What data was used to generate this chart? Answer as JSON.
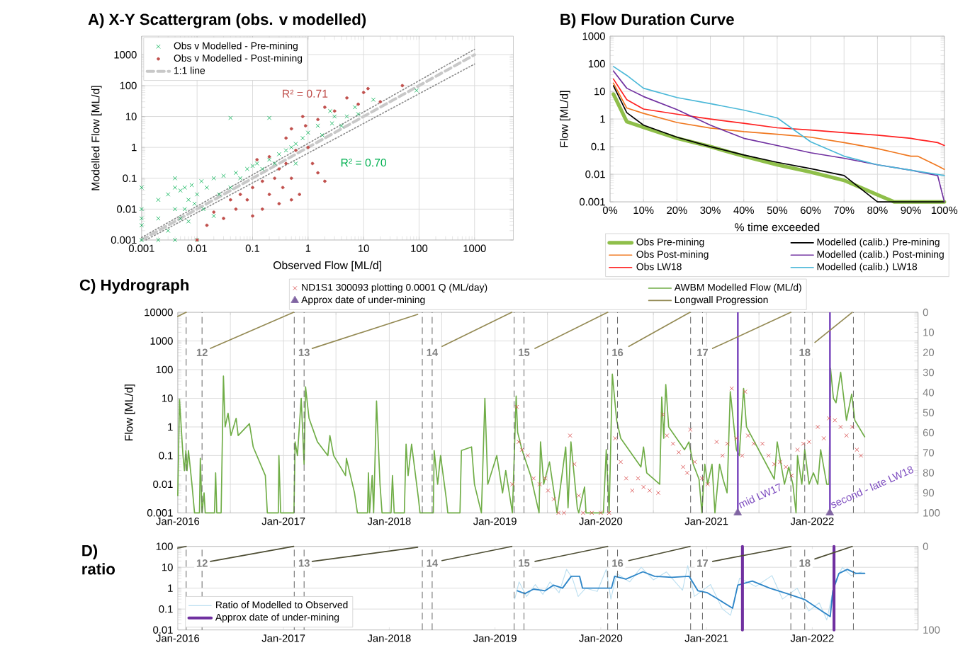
{
  "chart_data": [
    {
      "type": "scatter",
      "title": "A) X-Y Scattergram (obs. v modelled)",
      "xlabel": "Observed Flow [ML/d]",
      "ylabel": "Modelled Flow [ML/d]",
      "log": "xy",
      "xlim": [
        0.001,
        5000
      ],
      "ylim": [
        0.001,
        4000
      ],
      "xticks": [
        0.001,
        0.01,
        0.1,
        1,
        10,
        100,
        1000
      ],
      "yticks": [
        0.001,
        0.01,
        0.1,
        1,
        10,
        100,
        1000
      ],
      "grid": true,
      "legend": "top left",
      "annotations": [
        "R² = 0.71",
        "R² = 0.70"
      ],
      "series": [
        {
          "name": "Obs v Modelled - Pre-mining",
          "color": "#00b050",
          "marker": "cross",
          "x": [
            0.001,
            0.001,
            0.001,
            0.001,
            0.001,
            0.002,
            0.002,
            0.002,
            0.003,
            0.003,
            0.004,
            0.004,
            0.004,
            0.004,
            0.005,
            0.005,
            0.006,
            0.006,
            0.007,
            0.007,
            0.008,
            0.009,
            0.01,
            0.01,
            0.012,
            0.013,
            0.015,
            0.02,
            0.02,
            0.025,
            0.03,
            0.04,
            0.04,
            0.05,
            0.06,
            0.08,
            0.1,
            0.12,
            0.15,
            0.2,
            0.2,
            0.25,
            0.3,
            0.4,
            0.5,
            0.6,
            0.6,
            0.8,
            1,
            1.5,
            1.8,
            2.5,
            2.7,
            3,
            4,
            5,
            7,
            8,
            15,
            90
          ],
          "values": [
            0.001,
            0.005,
            0.01,
            0.05,
            0.003,
            0.001,
            0.02,
            0.005,
            0.002,
            0.03,
            0.001,
            0.1,
            0.01,
            0.05,
            0.04,
            0.005,
            0.01,
            0.05,
            0.02,
            0.004,
            0.06,
            0.015,
            0.03,
            0.001,
            0.08,
            0.01,
            0.05,
            0.1,
            0.006,
            0.03,
            0.12,
            9,
            0.05,
            0.15,
            0.1,
            0.2,
            0.25,
            0.3,
            0.2,
            9,
            0.4,
            0.3,
            0.6,
            0.8,
            1,
            0.3,
            1.3,
            2,
            3,
            5,
            2.5,
            15,
            6,
            10,
            5,
            10,
            20,
            12,
            35,
            70
          ]
        },
        {
          "name": "Obs v Modelled - Post-mining",
          "color": "#c0504d",
          "marker": "circle",
          "x": [
            0.01,
            0.015,
            0.02,
            0.03,
            0.04,
            0.05,
            0.06,
            0.08,
            0.1,
            0.1,
            0.12,
            0.15,
            0.15,
            0.2,
            0.2,
            0.25,
            0.3,
            0.3,
            0.35,
            0.4,
            0.4,
            0.5,
            0.5,
            0.5,
            0.6,
            0.7,
            0.8,
            0.9,
            1,
            1.2,
            1.5,
            1.5,
            2,
            2,
            3,
            5,
            8,
            10,
            12,
            20,
            50
          ],
          "values": [
            0.001,
            0.003,
            0.008,
            0.005,
            0.02,
            0.01,
            0.03,
            0.02,
            0.006,
            0.05,
            0.4,
            0.01,
            0.08,
            0.03,
            0.5,
            0.1,
            0.015,
            0.2,
            0.05,
            2,
            0.3,
            0.02,
            0.1,
            4,
            0.8,
            0.03,
            10,
            5,
            1,
            0.3,
            0.15,
            8,
            20,
            0.08,
            15,
            40,
            25,
            60,
            80,
            30,
            100
          ]
        },
        {
          "name": "1:1 line",
          "type": "line",
          "color": "#c8c8c8",
          "line_style": "dashed",
          "x": [
            0.001,
            1000
          ],
          "values": [
            0.001,
            1000
          ]
        },
        {
          "type": "line",
          "color": "#8c8c8c",
          "line_style": "dotted",
          "x": [
            0.001,
            1000
          ],
          "values": [
            0.0012,
            1500
          ]
        },
        {
          "type": "line",
          "color": "#8c8c8c",
          "line_style": "dotted",
          "x": [
            0.0012,
            1000
          ],
          "values": [
            0.001,
            500
          ]
        }
      ]
    },
    {
      "type": "line",
      "title": "B) Flow Duration Curve",
      "xlabel": "% time exceeded",
      "ylabel": "Flow [ML/d]",
      "log": "y",
      "xlim": [
        0,
        100
      ],
      "ylim": [
        0.001,
        1000
      ],
      "xticks": [
        {
          "value": 0,
          "label": "0%"
        },
        {
          "value": 10,
          "label": "10%"
        },
        {
          "value": 20,
          "label": "20%"
        },
        {
          "value": 30,
          "label": "30%"
        },
        {
          "value": 40,
          "label": "40%"
        },
        {
          "value": 50,
          "label": "50%"
        },
        {
          "value": 60,
          "label": "60%"
        },
        {
          "value": 70,
          "label": "70%"
        },
        {
          "value": 80,
          "label": "80%"
        },
        {
          "value": 90,
          "label": "90%"
        },
        {
          "value": 100,
          "label": "100%"
        }
      ],
      "yticks": [
        0.001,
        0.01,
        0.1,
        1,
        10,
        100,
        1000
      ],
      "grid": true,
      "legend": "bottom",
      "series": [
        {
          "name": "Obs Pre-mining",
          "color": "#8fbf4a",
          "x": [
            1,
            5,
            10,
            20,
            30,
            40,
            50,
            60,
            70,
            80,
            85,
            90,
            100
          ],
          "values": [
            8,
            0.8,
            0.5,
            0.2,
            0.1,
            0.045,
            0.022,
            0.012,
            0.006,
            0.0018,
            0.001,
            0.001,
            0.001
          ]
        },
        {
          "name": "Obs Post-mining",
          "color": "#f07820",
          "x": [
            1,
            5,
            10,
            20,
            30,
            40,
            50,
            60,
            70,
            80,
            90,
            92,
            95,
            98,
            100
          ],
          "values": [
            20,
            2.5,
            1.6,
            0.75,
            0.47,
            0.35,
            0.28,
            0.22,
            0.14,
            0.085,
            0.045,
            0.045,
            0.03,
            0.02,
            0.015
          ]
        },
        {
          "name": "Obs LW18",
          "color": "#ff2020",
          "x": [
            1,
            5,
            10,
            20,
            30,
            40,
            50,
            60,
            70,
            80,
            90,
            92,
            95,
            98,
            100
          ],
          "values": [
            28,
            5,
            2.3,
            1.5,
            1.0,
            0.7,
            0.48,
            0.4,
            0.32,
            0.26,
            0.2,
            0.18,
            0.16,
            0.14,
            0.11
          ]
        },
        {
          "name": "Modelled (calib.) Pre-mining",
          "color": "#000000",
          "x": [
            1,
            5,
            10,
            20,
            30,
            40,
            50,
            60,
            70,
            80,
            90,
            100
          ],
          "values": [
            16,
            1.7,
            0.6,
            0.22,
            0.1,
            0.05,
            0.027,
            0.016,
            0.009,
            0.001,
            0.001,
            0.001
          ]
        },
        {
          "name": "Modelled (calib.) Post-mining",
          "color": "#7030a0",
          "x": [
            1,
            5,
            10,
            20,
            30,
            40,
            50,
            60,
            70,
            80,
            90,
            98,
            100
          ],
          "values": [
            55,
            13,
            6.5,
            2.2,
            0.6,
            0.2,
            0.11,
            0.06,
            0.038,
            0.022,
            0.014,
            0.009,
            0.001
          ]
        },
        {
          "name": "Modelled (calib.) LW18",
          "color": "#4bb8d8",
          "x": [
            1,
            5,
            10,
            20,
            30,
            40,
            50,
            60,
            70,
            80,
            90,
            100
          ],
          "values": [
            80,
            38,
            13,
            6,
            3.6,
            2.1,
            1.1,
            0.15,
            0.045,
            0.022,
            0.014,
            0.009
          ]
        }
      ]
    },
    {
      "type": "line",
      "title": "C) Hydrograph",
      "ylabel": "Flow [ML/d]",
      "log": "y",
      "xlim": [
        "2016-01",
        "2023-01"
      ],
      "ylim": [
        0.001,
        10000
      ],
      "xticks": [
        {
          "value": "2016-01",
          "label": "Jan-2016"
        },
        {
          "value": "2016-07",
          "label": null
        },
        {
          "value": "2017-01",
          "label": "Jan-2017"
        },
        {
          "value": "2017-07",
          "label": null
        },
        {
          "value": "2018-01",
          "label": "Jan-2018"
        },
        {
          "value": "2018-07",
          "label": null
        },
        {
          "value": "2019-01",
          "label": "Jan-2019"
        },
        {
          "value": "2019-07",
          "label": null
        },
        {
          "value": "2020-01",
          "label": "Jan-2020"
        },
        {
          "value": "2020-07",
          "label": null
        },
        {
          "value": "2021-01",
          "label": "Jan-2021"
        },
        {
          "value": "2021-07",
          "label": null
        },
        {
          "value": "2022-01",
          "label": "Jan-2022"
        },
        {
          "value": "2022-07",
          "label": null
        }
      ],
      "yticks": [
        0.001,
        0.01,
        0.1,
        1,
        10,
        100,
        1000,
        10000
      ],
      "y2lim": [
        100,
        0
      ],
      "y2ticks": [
        0,
        10,
        20,
        30,
        40,
        50,
        60,
        70,
        80,
        90,
        100
      ],
      "grid": true,
      "legend": "top",
      "ref_lines": [
        {
          "axis": "x",
          "value": "2016-01-30",
          "color": "#595959",
          "line_style": "dashed"
        },
        {
          "axis": "x",
          "value": "2016-03-25",
          "label": "12",
          "color": "#595959",
          "line_style": "dashed"
        },
        {
          "axis": "x",
          "value": "2017-02-07",
          "color": "#595959",
          "line_style": "dashed"
        },
        {
          "axis": "x",
          "value": "2017-03-13",
          "label": "13",
          "color": "#595959",
          "line_style": "dashed"
        },
        {
          "axis": "x",
          "value": "2018-04-25",
          "color": "#595959",
          "line_style": "dashed"
        },
        {
          "axis": "x",
          "value": "2018-05-29",
          "label": "14",
          "color": "#595959",
          "line_style": "dashed"
        },
        {
          "axis": "x",
          "value": "2019-03-08",
          "color": "#595959",
          "line_style": "dashed"
        },
        {
          "axis": "x",
          "value": "2019-04-11",
          "label": "15",
          "color": "#595959",
          "line_style": "dashed"
        },
        {
          "axis": "x",
          "value": "2020-01-25",
          "color": "#595959",
          "line_style": "dashed"
        },
        {
          "axis": "x",
          "value": "2020-02-28",
          "label": "16",
          "color": "#595959",
          "line_style": "dashed"
        },
        {
          "axis": "x",
          "value": "2020-11-07",
          "color": "#595959",
          "line_style": "dashed"
        },
        {
          "axis": "x",
          "value": "2020-12-18",
          "label": "17",
          "color": "#595959",
          "line_style": "dashed"
        },
        {
          "axis": "x",
          "value": "2021-10-19",
          "color": "#595959",
          "line_style": "dashed"
        },
        {
          "axis": "x",
          "value": "2021-12-06",
          "label": "18",
          "color": "#595959",
          "line_style": "dashed"
        },
        {
          "axis": "x",
          "value": "2022-05-23",
          "color": "#595959",
          "line_style": "dashed"
        },
        {
          "axis": "x",
          "value": "2021-04-19",
          "label": "mid LW17",
          "color": "#7f4fc0",
          "line_style": "solid"
        },
        {
          "axis": "x",
          "value": "2022-03-03",
          "label": "second - late LW18",
          "color": "#7f4fc0",
          "line_style": "solid"
        }
      ],
      "series": [
        {
          "name": "ND1S1 300093 plotting 0.0001 Q (ML/day)",
          "type": "scatter",
          "marker": "cross",
          "color": "#d84848",
          "x": [
            "2019-03-02",
            "2019-03-17",
            "2019-03-24",
            "2019-04-04",
            "2019-04-24",
            "2019-05-14",
            "2019-06-04",
            "2019-06-23",
            "2019-07-03",
            "2019-07-23",
            "2019-08-08",
            "2019-08-27",
            "2019-09-17",
            "2019-10-02",
            "2019-10-17",
            "2019-11-01",
            "2019-12-01",
            "2020-01-01",
            "2020-01-30",
            "2020-02-20",
            "2020-03-10",
            "2020-03-29",
            "2020-04-19",
            "2020-05-09",
            "2020-05-28",
            "2020-06-18",
            "2020-07-18",
            "2020-08-03",
            "2020-08-17",
            "2020-09-07",
            "2020-09-27",
            "2020-10-12",
            "2020-10-26",
            "2020-11-06",
            "2020-11-21",
            "2020-12-16",
            "2021-01-05",
            "2021-02-05",
            "2021-02-25",
            "2021-03-14",
            "2021-03-29",
            "2021-04-14",
            "2021-05-04",
            "2021-05-14",
            "2021-05-24",
            "2021-06-13",
            "2021-07-13",
            "2021-08-03",
            "2021-08-23",
            "2021-09-12",
            "2021-10-02",
            "2021-10-22",
            "2021-11-11",
            "2021-12-01",
            "2021-12-21",
            "2022-01-20",
            "2022-02-10",
            "2022-02-28",
            "2022-03-20",
            "2022-04-09",
            "2022-04-29",
            "2022-05-19",
            "2022-06-04",
            "2022-06-18"
          ],
          "values": [
            0.01,
            5,
            0.3,
            0.16,
            0.1,
            0.016,
            0.01,
            0.016,
            0.006,
            0.003,
            0.001,
            0.001,
            0.5,
            0.05,
            0.004,
            0.001,
            0.001,
            0.001,
            0.001,
            0.4,
            0.06,
            0.016,
            0.006,
            0.016,
            0.008,
            0.006,
            0.005,
            2.7,
            0.5,
            0.26,
            0.13,
            0.04,
            0.025,
            0.8,
            0.06,
            0.016,
            0.01,
            0.3,
            0.1,
            0.26,
            22,
            0.4,
            0.1,
            17,
            0.5,
            0.26,
            0.26,
            0.1,
            0.05,
            0.06,
            0.04,
            0.02,
            0.16,
            0.26,
            0.3,
            1,
            0.4,
            2,
            1.7,
            1,
            0.5,
            1,
            0.16,
            0.1
          ]
        },
        {
          "name": "Approx date of under-mining",
          "type": "scatter",
          "marker": "triangle",
          "color": "#8064a2",
          "x": [
            "2021-04-19",
            "2022-03-03"
          ],
          "values": [
            0.001,
            0.001
          ]
        },
        {
          "name": "AWBM Modelled Flow (ML/d)",
          "color": "#70ad47",
          "x": [
            "2016-01-01",
            "2016-01-07",
            "2016-01-19",
            "2016-01-24",
            "2016-01-29",
            "2016-02-02",
            "2016-02-07",
            "2016-02-19",
            "2016-02-28",
            "2016-03-16",
            "2016-03-19",
            "2016-03-25",
            "2016-04-01",
            "2016-04-05",
            "2016-05-07",
            "2016-05-11",
            "2016-05-15",
            "2016-05-30",
            "2016-06-07",
            "2016-06-13",
            "2016-06-23",
            "2016-07-03",
            "2016-07-21",
            "2016-07-28",
            "2016-09-05",
            "2016-09-18",
            "2016-10-30",
            "2016-11-06",
            "2016-12-14",
            "2016-12-16",
            "2016-12-22",
            "2017-02-06",
            "2017-02-10",
            "2017-02-18",
            "2017-03-03",
            "2017-03-13",
            "2017-03-18",
            "2017-03-30",
            "2017-04-28",
            "2017-06-03",
            "2017-06-10",
            "2017-06-23",
            "2017-08-03",
            "2017-08-06",
            "2017-09-03",
            "2017-09-13",
            "2017-10-18",
            "2017-10-21",
            "2017-10-25",
            "2017-11-03",
            "2017-11-08",
            "2017-11-18",
            "2017-11-30",
            "2017-12-07",
            "2018-01-07",
            "2018-01-12",
            "2018-01-18",
            "2018-02-22",
            "2018-02-28",
            "2018-03-07",
            "2018-03-19",
            "2018-04-12",
            "2018-04-17",
            "2018-06-02",
            "2018-06-05",
            "2018-06-17",
            "2018-06-27",
            "2018-07-17",
            "2018-07-22",
            "2018-09-02",
            "2018-09-07",
            "2018-10-12",
            "2018-10-22",
            "2018-11-15",
            "2018-11-27",
            "2018-12-07",
            "2019-01-07",
            "2019-01-27",
            "2019-02-07",
            "2019-03-02",
            "2019-03-15",
            "2019-03-20",
            "2019-04-04",
            "2019-05-04",
            "2019-06-02",
            "2019-06-07",
            "2019-06-18",
            "2019-07-08",
            "2019-08-03",
            "2019-09-02",
            "2019-09-10",
            "2019-09-20",
            "2019-10-12",
            "2019-10-17",
            "2019-11-06",
            "2019-11-11",
            "2020-01-10",
            "2020-01-20",
            "2020-01-30",
            "2020-02-10",
            "2020-02-25",
            "2020-03-10",
            "2020-05-19",
            "2020-05-28",
            "2020-06-08",
            "2020-07-23",
            "2020-07-30",
            "2020-08-06",
            "2020-08-13",
            "2020-08-23",
            "2020-10-17",
            "2020-11-01",
            "2020-11-16",
            "2020-12-06",
            "2020-12-16",
            "2020-12-26",
            "2021-01-05",
            "2021-01-20",
            "2021-01-30",
            "2021-02-15",
            "2021-02-27",
            "2021-03-13",
            "2021-03-24",
            "2021-04-14",
            "2021-04-24",
            "2021-05-09",
            "2021-05-19",
            "2021-08-23",
            "2021-09-02",
            "2021-09-27",
            "2021-10-12",
            "2021-10-26",
            "2021-11-06",
            "2021-11-11",
            "2021-11-26",
            "2021-12-06",
            "2021-12-21",
            "2022-01-05",
            "2022-01-20",
            "2022-01-30",
            "2022-02-20",
            "2022-02-28",
            "2022-03-05",
            "2022-03-15",
            "2022-03-24",
            "2022-04-09",
            "2022-04-29",
            "2022-05-17",
            "2022-05-28",
            "2022-07-01"
          ],
          "values": [
            0.004,
            9,
            0.1,
            0.03,
            0.15,
            0.03,
            0.15,
            0.01,
            0.001,
            0.001,
            0.08,
            0.001,
            0.005,
            0.001,
            0.001,
            0.025,
            0.001,
            0.001,
            60,
            1,
            3,
            0.5,
            2,
            0.5,
            1.3,
            0.2,
            0.02,
            0.001,
            0.001,
            0.1,
            0.001,
            0.001,
            0.3,
            0.1,
            10,
            0.05,
            25,
            2,
            0.3,
            0.1,
            0.5,
            0.1,
            0.02,
            0.08,
            0.005,
            0.001,
            0.001,
            0.025,
            0.001,
            0.02,
            0.001,
            8,
            0.01,
            0.001,
            0.001,
            0.02,
            0.001,
            0.001,
            0.25,
            0.02,
            0.25,
            0.003,
            0.001,
            0.001,
            0.15,
            0.01,
            0.1,
            0.003,
            0.001,
            0.001,
            0.15,
            0.2,
            0.01,
            0.001,
            10,
            0.01,
            0.1,
            0.005,
            0.03,
            0.001,
            12,
            0.65,
            0.16,
            0.02,
            0.001,
            0.3,
            0.01,
            0.06,
            0.001,
            0.2,
            0.0015,
            0.3,
            0.0015,
            0.001,
            0.008,
            0.001,
            0.001,
            0.16,
            0.001,
            70,
            1.7,
            0.4,
            0.04,
            0.2,
            0.025,
            0.01,
            11,
            0.4,
            30,
            1,
            0.16,
            0.3,
            0.05,
            0.015,
            0.001,
            0.05,
            0.01,
            0.05,
            0.001,
            0.05,
            0.015,
            0.005,
            17,
            0.16,
            0.1,
            22,
            1,
            0.015,
            0.3,
            0.01,
            0.04,
            0.01,
            0.001,
            0.1,
            0.01,
            0.16,
            0.01,
            0.025,
            0.01,
            0.16,
            0.01,
            0.01,
            110,
            10,
            7,
            80,
            1.7,
            14,
            1.7,
            0.45
          ]
        },
        {
          "name": "Longwall Progression",
          "axis": "y2",
          "color": "#948a54",
          "x": [
            "2016-01-01",
            "2016-01-30"
          ],
          "values": [
            2,
            0
          ]
        },
        {
          "axis": "y2",
          "color": "#948a54",
          "x": [
            "2016-04-23",
            "2017-02-05"
          ],
          "values": [
            18,
            0
          ]
        },
        {
          "axis": "y2",
          "color": "#948a54",
          "x": [
            "2017-04-10",
            "2018-04-09"
          ],
          "values": [
            18,
            1
          ]
        },
        {
          "axis": "y2",
          "color": "#948a54",
          "x": [
            "2018-07-02",
            "2019-02-28"
          ],
          "values": [
            17,
            0
          ]
        },
        {
          "axis": "y2",
          "color": "#948a54",
          "x": [
            "2019-05-19",
            "2020-01-25"
          ],
          "values": [
            18,
            0
          ]
        },
        {
          "axis": "y2",
          "color": "#948a54",
          "x": [
            "2020-04-07",
            "2020-11-05"
          ],
          "values": [
            17,
            0
          ]
        },
        {
          "axis": "y2",
          "color": "#948a54",
          "x": [
            "2021-01-22",
            "2021-10-19"
          ],
          "values": [
            18,
            0
          ]
        },
        {
          "axis": "y2",
          "color": "#948a54",
          "x": [
            "2022-01-10",
            "2022-05-19"
          ],
          "values": [
            15,
            0
          ]
        }
      ]
    },
    {
      "type": "line",
      "title": "D) ratio",
      "log": "y",
      "xlim": [
        "2016-01",
        "2023-01"
      ],
      "ylim": [
        0.01,
        100
      ],
      "xticks": [
        {
          "value": "2016-01",
          "label": "Jan-2016"
        },
        {
          "value": "2017-01",
          "label": "Jan-2017"
        },
        {
          "value": "2018-01",
          "label": "Jan-2018"
        },
        {
          "value": "2019-01",
          "label": "Jan-2019"
        },
        {
          "value": "2020-01",
          "label": "Jan-2020"
        },
        {
          "value": "2021-01",
          "label": "Jan-2021"
        },
        {
          "value": "2022-01",
          "label": "Jan-2022"
        }
      ],
      "yticks": [
        0.01,
        0.1,
        1,
        10,
        100
      ],
      "y2lim": [
        100,
        0
      ],
      "y2ticks": [
        0,
        100
      ],
      "grid": "y",
      "legend": "bottom left",
      "ref_lines": [
        {
          "axis": "x",
          "value": "2016-01-30",
          "color": "#595959",
          "line_style": "dashed"
        },
        {
          "axis": "x",
          "value": "2016-03-25",
          "label": "12",
          "color": "#595959",
          "line_style": "dashed"
        },
        {
          "axis": "x",
          "value": "2017-02-07",
          "color": "#595959",
          "line_style": "dashed"
        },
        {
          "axis": "x",
          "value": "2017-03-13",
          "label": "13",
          "color": "#595959",
          "line_style": "dashed"
        },
        {
          "axis": "x",
          "value": "2018-04-25",
          "color": "#595959",
          "line_style": "dashed"
        },
        {
          "axis": "x",
          "value": "2018-05-29",
          "label": "14",
          "color": "#595959",
          "line_style": "dashed"
        },
        {
          "axis": "x",
          "value": "2019-03-08",
          "color": "#595959",
          "line_style": "dashed"
        },
        {
          "axis": "x",
          "value": "2019-04-11",
          "label": "15",
          "color": "#595959",
          "line_style": "dashed"
        },
        {
          "axis": "x",
          "value": "2020-01-25",
          "color": "#595959",
          "line_style": "dashed"
        },
        {
          "axis": "x",
          "value": "2020-02-28",
          "label": "16",
          "color": "#595959",
          "line_style": "dashed"
        },
        {
          "axis": "x",
          "value": "2020-11-07",
          "color": "#595959",
          "line_style": "dashed"
        },
        {
          "axis": "x",
          "value": "2020-12-18",
          "label": "17",
          "color": "#595959",
          "line_style": "dashed"
        },
        {
          "axis": "x",
          "value": "2021-10-19",
          "color": "#595959",
          "line_style": "dashed"
        },
        {
          "axis": "x",
          "value": "2021-12-06",
          "label": "18",
          "color": "#595959",
          "line_style": "dashed"
        },
        {
          "axis": "x",
          "value": "2022-05-23",
          "color": "#595959",
          "line_style": "dashed"
        }
      ],
      "series": [
        {
          "name": "Ratio of Modelled to Observed",
          "color": "#bcdff0",
          "x": [
            "2019-03-10",
            "2019-03-25",
            "2019-04-20",
            "2019-05-20",
            "2019-06-15",
            "2019-07-10",
            "2019-08-10",
            "2019-09-05",
            "2019-09-25",
            "2019-10-15",
            "2019-11-10",
            "2019-12-20",
            "2020-01-20",
            "2020-02-05",
            "2020-02-25",
            "2020-04-10",
            "2020-05-20",
            "2020-07-01",
            "2020-08-15",
            "2020-10-10",
            "2020-10-28",
            "2020-11-20",
            "2021-01-15",
            "2021-02-25",
            "2021-03-25",
            "2021-04-25",
            "2021-06-20",
            "2021-08-15",
            "2021-09-20",
            "2021-11-10",
            "2021-12-20",
            "2022-01-25",
            "2022-02-20",
            "2022-03-20",
            "2022-04-15",
            "2022-05-15",
            "2022-06-20"
          ],
          "values": [
            0.3,
            2,
            0.4,
            1.5,
            0.5,
            2,
            0.6,
            8,
            3,
            0.4,
            1,
            0.7,
            8,
            0.3,
            5,
            2,
            10,
            2.5,
            6,
            0.8,
            12,
            0.4,
            1.5,
            0.1,
            0.05,
            3,
            1.2,
            4,
            0.3,
            1,
            0.08,
            0.2,
            0.03,
            2,
            10,
            4,
            6
          ]
        },
        {
          "color": "#2e86c8",
          "x": [
            "2019-03-19",
            "2019-04-14",
            "2019-05-14",
            "2019-06-23",
            "2019-07-22",
            "2019-08-22",
            "2019-09-21",
            "2019-10-20",
            "2019-10-30",
            "2020-02-07",
            "2020-02-18",
            "2020-03-28",
            "2020-05-26",
            "2020-07-05",
            "2020-09-03",
            "2020-11-02",
            "2020-12-02",
            "2021-01-02",
            "2021-02-11",
            "2021-04-01",
            "2021-04-19",
            "2021-06-08",
            "2021-08-07",
            "2021-10-06",
            "2021-12-05",
            "2022-02-03",
            "2022-03-04",
            "2022-03-13",
            "2022-04-03",
            "2022-05-02",
            "2022-06-01",
            "2022-07-01"
          ],
          "values": [
            0.75,
            0.55,
            0.9,
            0.75,
            1.4,
            1,
            3.7,
            3.7,
            1,
            1,
            3.7,
            2.7,
            6.1,
            3.7,
            3.3,
            3.7,
            0.75,
            0.62,
            0.29,
            0.11,
            1.4,
            2.2,
            1,
            0.55,
            0.29,
            0.08,
            0.044,
            0.75,
            5.1,
            7.9,
            5.1,
            5.1
          ]
        },
        {
          "name": "Approx date of under-mining",
          "color": "#7030a0",
          "x": [
            "2021-05-05",
            "2021-05-05"
          ],
          "values": [
            0.01,
            100
          ]
        },
        {
          "color": "#7030a0",
          "x": [
            "2022-03-17",
            "2022-03-17"
          ],
          "values": [
            0.01,
            100
          ]
        },
        {
          "axis": "y2",
          "color": "#4d4d33",
          "x": [
            "2016-01-01",
            "2016-01-30"
          ],
          "values": [
            2,
            0
          ]
        },
        {
          "axis": "y2",
          "color": "#4d4d33",
          "x": [
            "2016-04-23",
            "2017-02-05"
          ],
          "values": [
            18,
            0
          ]
        },
        {
          "axis": "y2",
          "color": "#4d4d33",
          "x": [
            "2017-04-10",
            "2018-04-09"
          ],
          "values": [
            18,
            1
          ]
        },
        {
          "axis": "y2",
          "color": "#4d4d33",
          "x": [
            "2018-07-02",
            "2019-02-28"
          ],
          "values": [
            17,
            0
          ]
        },
        {
          "axis": "y2",
          "color": "#4d4d33",
          "x": [
            "2019-05-19",
            "2020-01-25"
          ],
          "values": [
            18,
            0
          ]
        },
        {
          "axis": "y2",
          "color": "#4d4d33",
          "x": [
            "2020-04-07",
            "2020-11-05"
          ],
          "values": [
            17,
            0
          ]
        },
        {
          "axis": "y2",
          "color": "#4d4d33",
          "x": [
            "2021-01-22",
            "2021-10-19"
          ],
          "values": [
            18,
            0
          ]
        },
        {
          "axis": "y2",
          "color": "#4d4d33",
          "x": [
            "2022-01-10",
            "2022-05-19"
          ],
          "values": [
            15,
            0
          ]
        }
      ]
    }
  ]
}
